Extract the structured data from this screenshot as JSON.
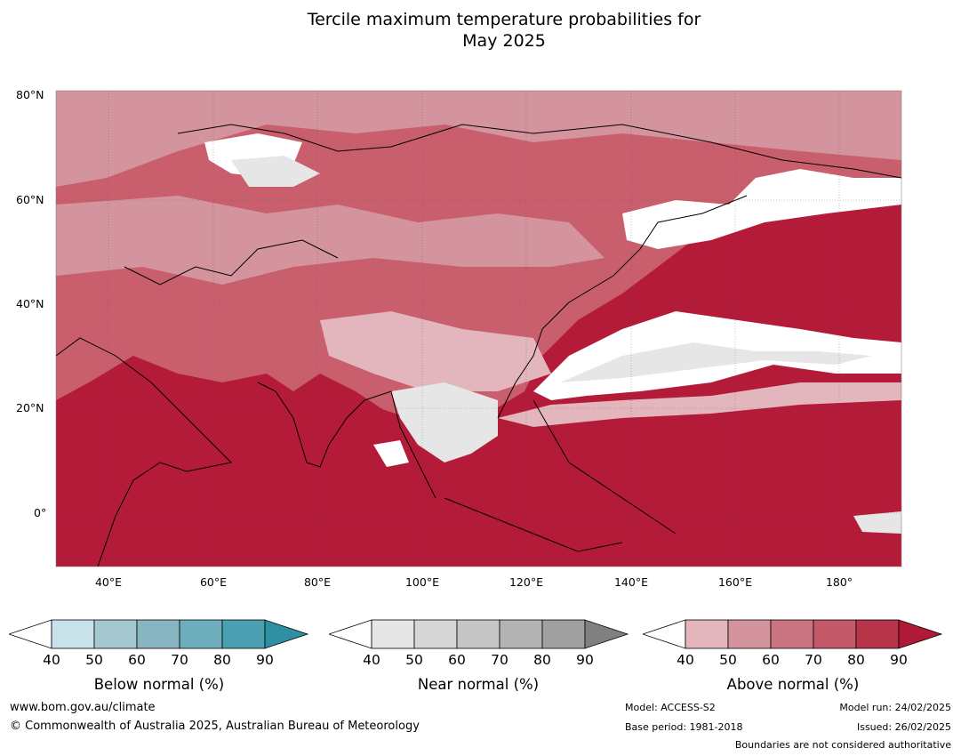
{
  "title_line1": "Tercile maximum temperature probabilities for",
  "title_line2": "May 2025",
  "map": {
    "lat_labels": [
      "80°N",
      "60°N",
      "40°N",
      "20°N",
      "0°"
    ],
    "lon_labels": [
      "40°E",
      "60°E",
      "80°E",
      "100°E",
      "120°E",
      "140°E",
      "160°E",
      "180°"
    ],
    "colors": {
      "ocean_dominant": "#b41b38",
      "land_dominant": "#c95f6c",
      "white": "#ffffff",
      "near_normal_light": "#e6e6e6"
    }
  },
  "colorbars": [
    {
      "label": "Below normal (%)",
      "ticks": [
        "40",
        "50",
        "60",
        "70",
        "80",
        "90"
      ],
      "colors": [
        "#ffffff",
        "#c9e1e8",
        "#a5c7cf",
        "#88b6c0",
        "#6eadbb",
        "#4aa0b0",
        "#2f8fa3"
      ]
    },
    {
      "label": "Near normal (%)",
      "ticks": [
        "40",
        "50",
        "60",
        "70",
        "80",
        "90"
      ],
      "colors": [
        "#ffffff",
        "#e6e6e6",
        "#d6d6d6",
        "#c6c6c6",
        "#b3b3b3",
        "#a0a0a0",
        "#808080"
      ]
    },
    {
      "label": "Above normal (%)",
      "ticks": [
        "40",
        "50",
        "60",
        "70",
        "80",
        "90"
      ],
      "colors": [
        "#ffffff",
        "#e2b6bc",
        "#d4949d",
        "#c97480",
        "#c45a69",
        "#b73449",
        "#b01a37"
      ]
    }
  ],
  "footer": {
    "url": "www.bom.gov.au/climate",
    "copyright": "© Commonwealth of Australia 2025, Australian Bureau of Meteorology",
    "model": "Model: ACCESS-S2",
    "base_period": "Base period: 1981-2018",
    "model_run": "Model run: 24/02/2025",
    "issued": "Issued: 26/02/2025",
    "disclaimer": "Boundaries are not considered authoritative"
  }
}
